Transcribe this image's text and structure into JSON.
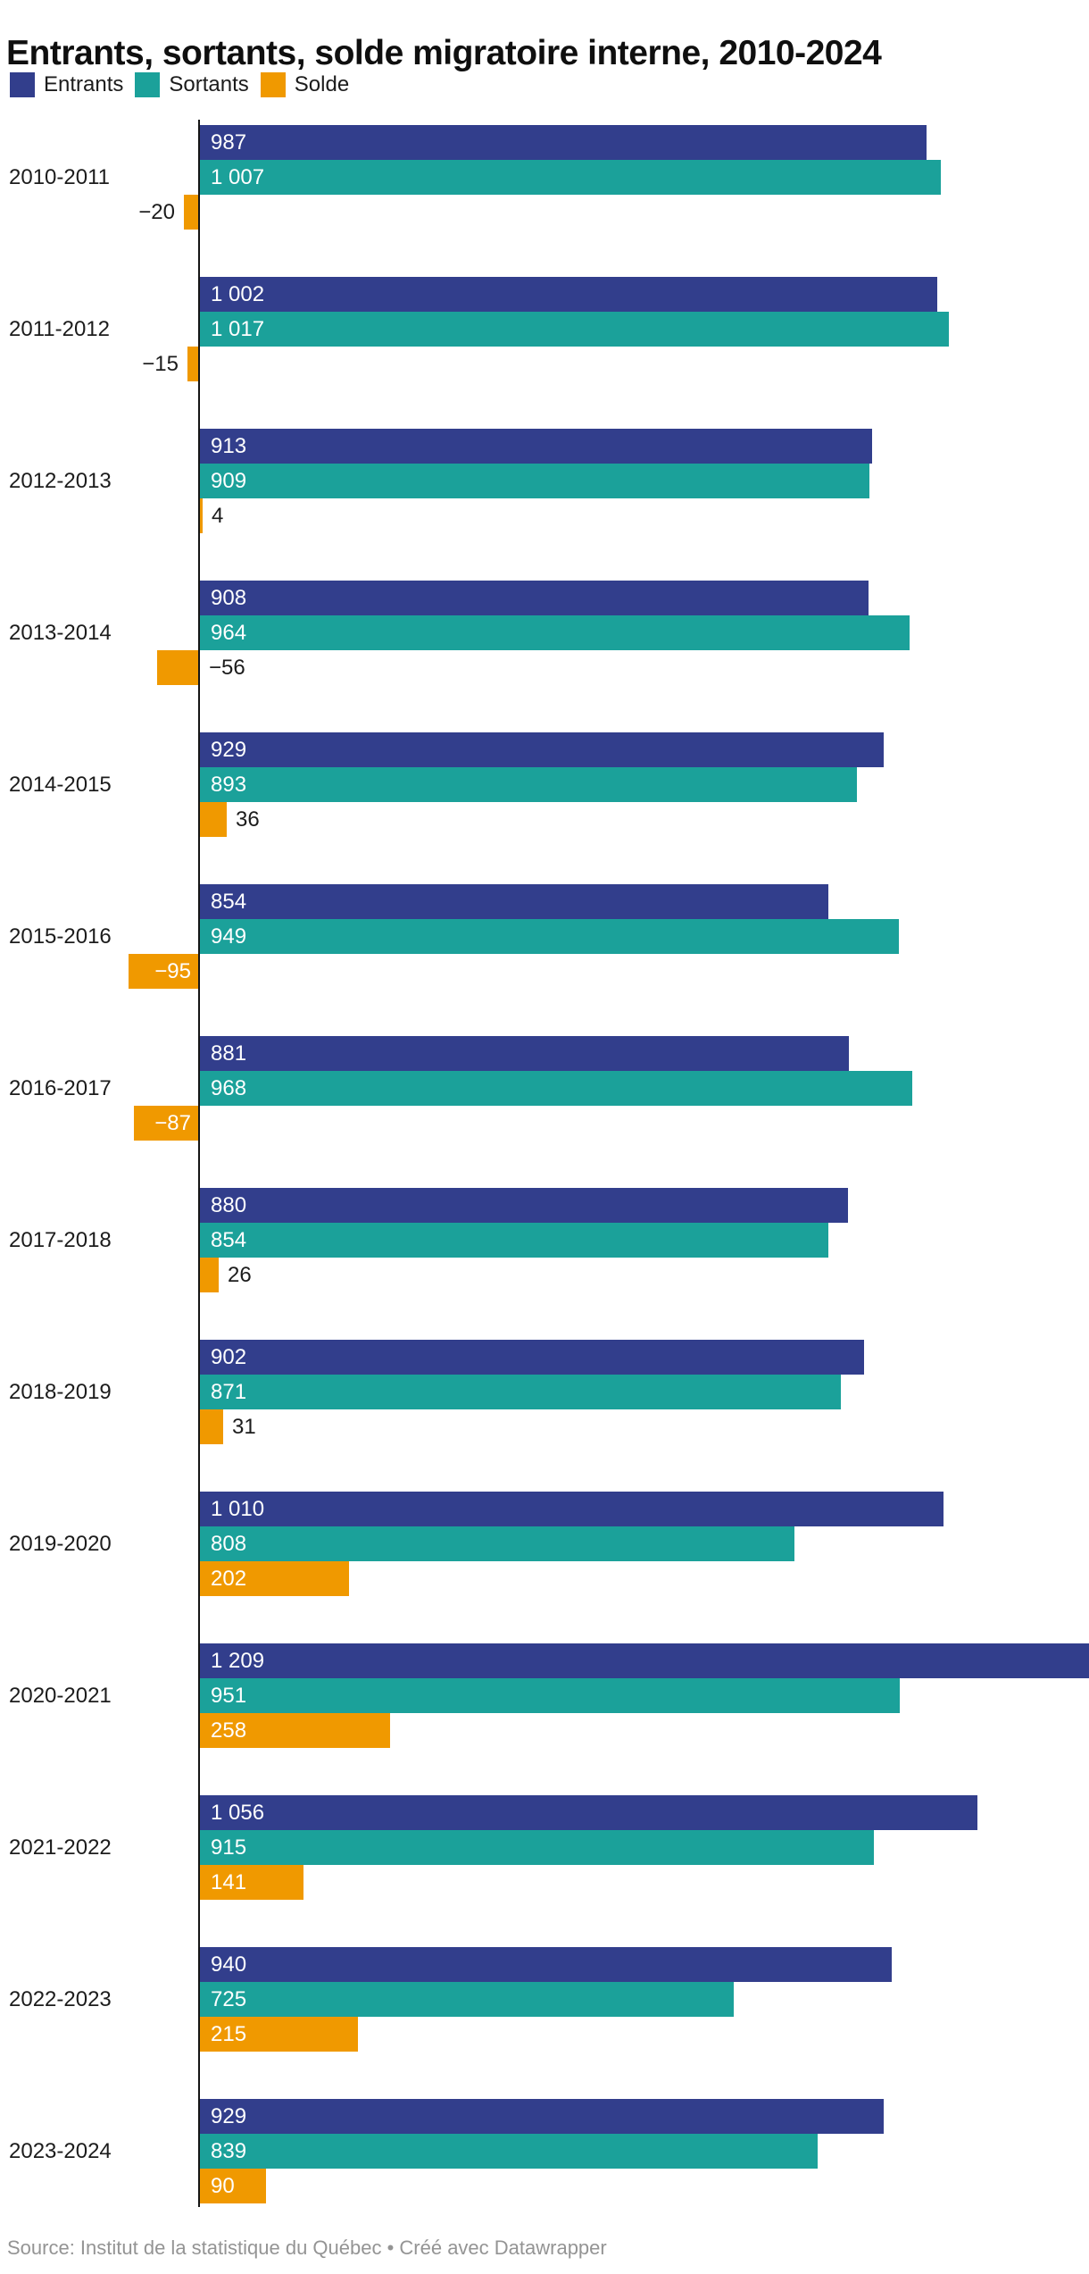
{
  "title": "Entrants, sortants, solde migratoire interne, 2010-2024",
  "legend": {
    "position": "top",
    "items": [
      {
        "label": "Entrants",
        "color": "#323e8c"
      },
      {
        "label": "Sortants",
        "color": "#1ba19a"
      },
      {
        "label": "Solde",
        "color": "#f09900"
      }
    ]
  },
  "source_line": "Source: Institut de la statistique du Québec • Créé avec Datawrapper",
  "colors": {
    "entrants": "#323e8c",
    "sortants": "#1ba19a",
    "solde": "#f09900",
    "axis": "#151515",
    "text": "#1c1c1c",
    "label_on_bar": "#ffffff",
    "source_text": "#949494"
  },
  "chart_data": {
    "type": "bar",
    "orientation": "horizontal",
    "title": "Entrants, sortants, solde migratoire interne, 2010-2024",
    "xlabel": "",
    "ylabel": "",
    "xlim": [
      0,
      1209
    ],
    "grid": false,
    "legend_position": "top",
    "categories": [
      "2010-2011",
      "2011-2012",
      "2012-2013",
      "2013-2014",
      "2014-2015",
      "2015-2016",
      "2016-2017",
      "2017-2018",
      "2018-2019",
      "2019-2020",
      "2020-2021",
      "2021-2022",
      "2022-2023",
      "2023-2024"
    ],
    "series": [
      {
        "name": "Entrants",
        "color": "#323e8c",
        "values": [
          987,
          1002,
          913,
          908,
          929,
          854,
          881,
          880,
          902,
          1010,
          1209,
          1056,
          940,
          929
        ]
      },
      {
        "name": "Sortants",
        "color": "#1ba19a",
        "values": [
          1007,
          1017,
          909,
          964,
          893,
          949,
          968,
          854,
          871,
          808,
          951,
          915,
          725,
          839
        ]
      },
      {
        "name": "Solde",
        "color": "#f09900",
        "values": [
          -20,
          -15,
          4,
          -56,
          36,
          -95,
          -87,
          26,
          31,
          202,
          258,
          141,
          215,
          90
        ]
      }
    ],
    "rows": [
      {
        "category": "2010-2011",
        "entrants": 987,
        "sortants": 1007,
        "solde": -20,
        "labels": {
          "entrants": "987",
          "sortants": "1 007",
          "solde": "−20"
        },
        "solde_label_pos": "outside-left"
      },
      {
        "category": "2011-2012",
        "entrants": 1002,
        "sortants": 1017,
        "solde": -15,
        "labels": {
          "entrants": "1 002",
          "sortants": "1 017",
          "solde": "−15"
        },
        "solde_label_pos": "outside-left"
      },
      {
        "category": "2012-2013",
        "entrants": 913,
        "sortants": 909,
        "solde": 4,
        "labels": {
          "entrants": "913",
          "sortants": "909",
          "solde": "4"
        },
        "solde_label_pos": "outside-right"
      },
      {
        "category": "2013-2014",
        "entrants": 908,
        "sortants": 964,
        "solde": -56,
        "labels": {
          "entrants": "908",
          "sortants": "964",
          "solde": "−56"
        },
        "solde_label_pos": "outside-right"
      },
      {
        "category": "2014-2015",
        "entrants": 929,
        "sortants": 893,
        "solde": 36,
        "labels": {
          "entrants": "929",
          "sortants": "893",
          "solde": "36"
        },
        "solde_label_pos": "outside-right"
      },
      {
        "category": "2015-2016",
        "entrants": 854,
        "sortants": 949,
        "solde": -95,
        "labels": {
          "entrants": "854",
          "sortants": "949",
          "solde": "−95"
        },
        "solde_label_pos": "inside-right"
      },
      {
        "category": "2016-2017",
        "entrants": 881,
        "sortants": 968,
        "solde": -87,
        "labels": {
          "entrants": "881",
          "sortants": "968",
          "solde": "−87"
        },
        "solde_label_pos": "inside-right"
      },
      {
        "category": "2017-2018",
        "entrants": 880,
        "sortants": 854,
        "solde": 26,
        "labels": {
          "entrants": "880",
          "sortants": "854",
          "solde": "26"
        },
        "solde_label_pos": "outside-right"
      },
      {
        "category": "2018-2019",
        "entrants": 902,
        "sortants": 871,
        "solde": 31,
        "labels": {
          "entrants": "902",
          "sortants": "871",
          "solde": "31"
        },
        "solde_label_pos": "outside-right"
      },
      {
        "category": "2019-2020",
        "entrants": 1010,
        "sortants": 808,
        "solde": 202,
        "labels": {
          "entrants": "1 010",
          "sortants": "808",
          "solde": "202"
        },
        "solde_label_pos": "inside-left"
      },
      {
        "category": "2020-2021",
        "entrants": 1209,
        "sortants": 951,
        "solde": 258,
        "labels": {
          "entrants": "1 209",
          "sortants": "951",
          "solde": "258"
        },
        "solde_label_pos": "inside-left"
      },
      {
        "category": "2021-2022",
        "entrants": 1056,
        "sortants": 915,
        "solde": 141,
        "labels": {
          "entrants": "1 056",
          "sortants": "915",
          "solde": "141"
        },
        "solde_label_pos": "inside-left"
      },
      {
        "category": "2022-2023",
        "entrants": 940,
        "sortants": 725,
        "solde": 215,
        "labels": {
          "entrants": "940",
          "sortants": "725",
          "solde": "215"
        },
        "solde_label_pos": "inside-left"
      },
      {
        "category": "2023-2024",
        "entrants": 929,
        "sortants": 839,
        "solde": 90,
        "labels": {
          "entrants": "929",
          "sortants": "839",
          "solde": "90"
        },
        "solde_label_pos": "inside-left"
      }
    ]
  }
}
